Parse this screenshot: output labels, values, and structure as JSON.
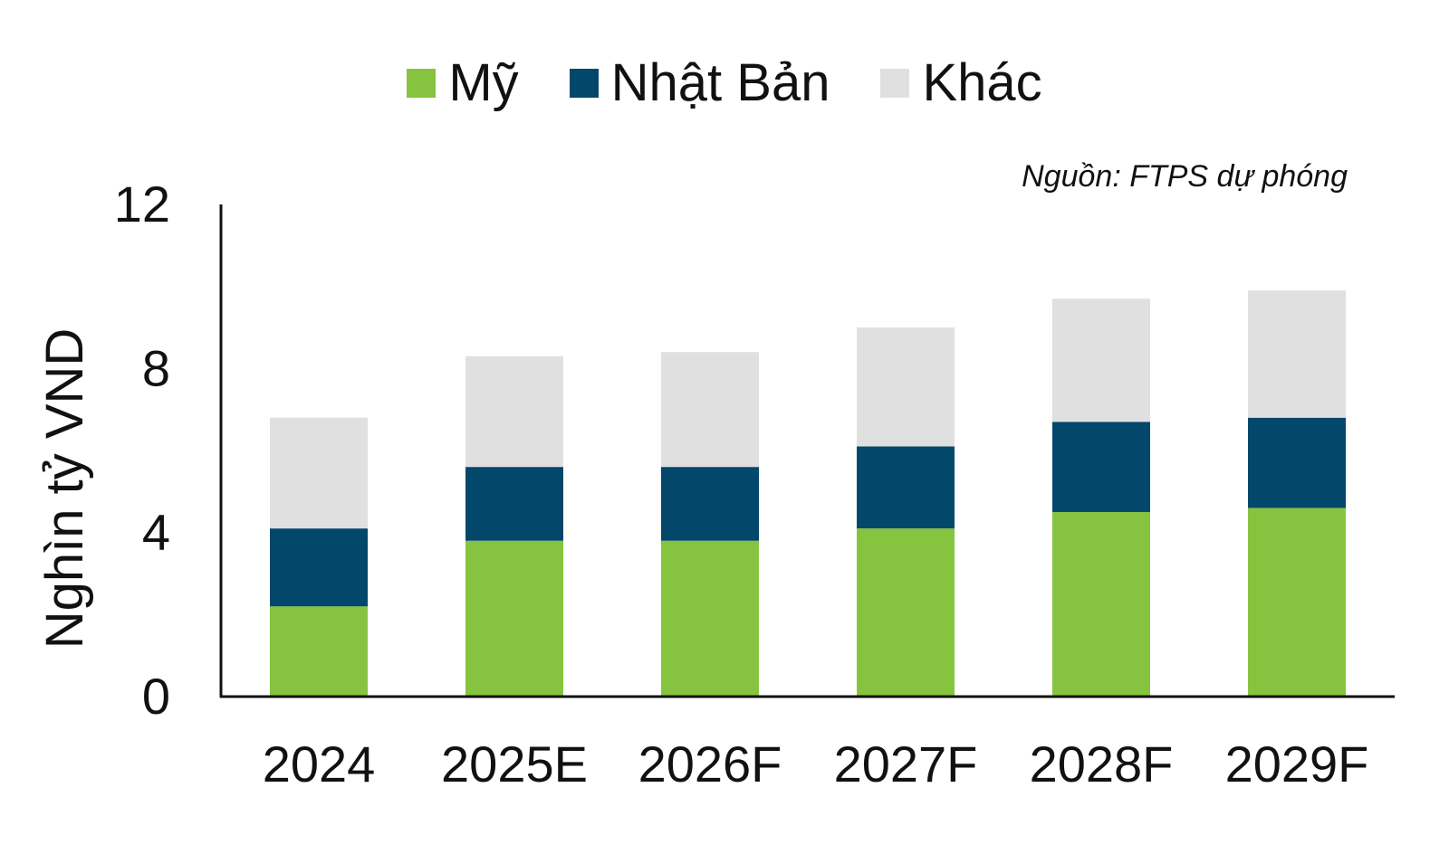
{
  "chart_data": {
    "type": "bar",
    "stacked": true,
    "title": "",
    "source_note": "Nguồn: FTPS dự phóng",
    "xlabel": "",
    "ylabel": "Nghìn tỷ VND",
    "ylim": [
      0,
      12
    ],
    "yticks": [
      "0",
      "4",
      "8",
      "12"
    ],
    "categories": [
      "2024",
      "2025E",
      "2026F",
      "2027F",
      "2028F",
      "2029F"
    ],
    "series": [
      {
        "name": "Mỹ",
        "color": "#86c440",
        "values": [
          2.2,
          3.8,
          3.8,
          4.1,
          4.5,
          4.6
        ]
      },
      {
        "name": "Nhật Bản",
        "color": "#03486b",
        "values": [
          1.9,
          1.8,
          1.8,
          2.0,
          2.2,
          2.2
        ]
      },
      {
        "name": "Khác",
        "color": "#e0e0e0",
        "values": [
          2.7,
          2.7,
          2.8,
          2.9,
          3.0,
          3.1
        ]
      }
    ],
    "legend_position": "top-center",
    "grid": false
  }
}
